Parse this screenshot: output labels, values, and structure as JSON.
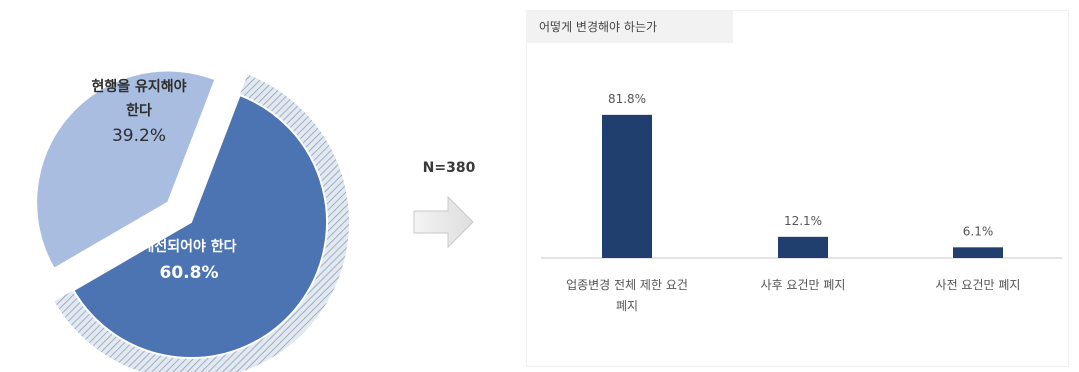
{
  "n_label": "N=380",
  "chart_data": [
    {
      "type": "pie",
      "title": "",
      "slices": [
        {
          "label_line1": "현행을 유지해야",
          "label_line2": "한다",
          "value": 39.2,
          "value_label": "39.2%",
          "color": "#a9bde1"
        },
        {
          "label_line1": "개선되어야 한다",
          "label_line2": "",
          "value": 60.8,
          "value_label": "60.8%",
          "color": "#4c74b3"
        }
      ]
    },
    {
      "type": "bar",
      "title": "어떻게 변경해야 하는가",
      "categories": [
        "업종변경 전체 제한 요건 폐지",
        "사후 요건만 폐지",
        "사전 요건만 폐지"
      ],
      "category_lines": [
        [
          "업종변경 전체 제한 요건",
          "폐지"
        ],
        [
          "사후 요건만 폐지"
        ],
        [
          "사전 요건만 폐지"
        ]
      ],
      "values": [
        81.8,
        12.1,
        6.1
      ],
      "value_labels": [
        "81.8%",
        "12.1%",
        "6.1%"
      ],
      "color": "#203f6e",
      "ylim": [
        0,
        100
      ]
    }
  ]
}
